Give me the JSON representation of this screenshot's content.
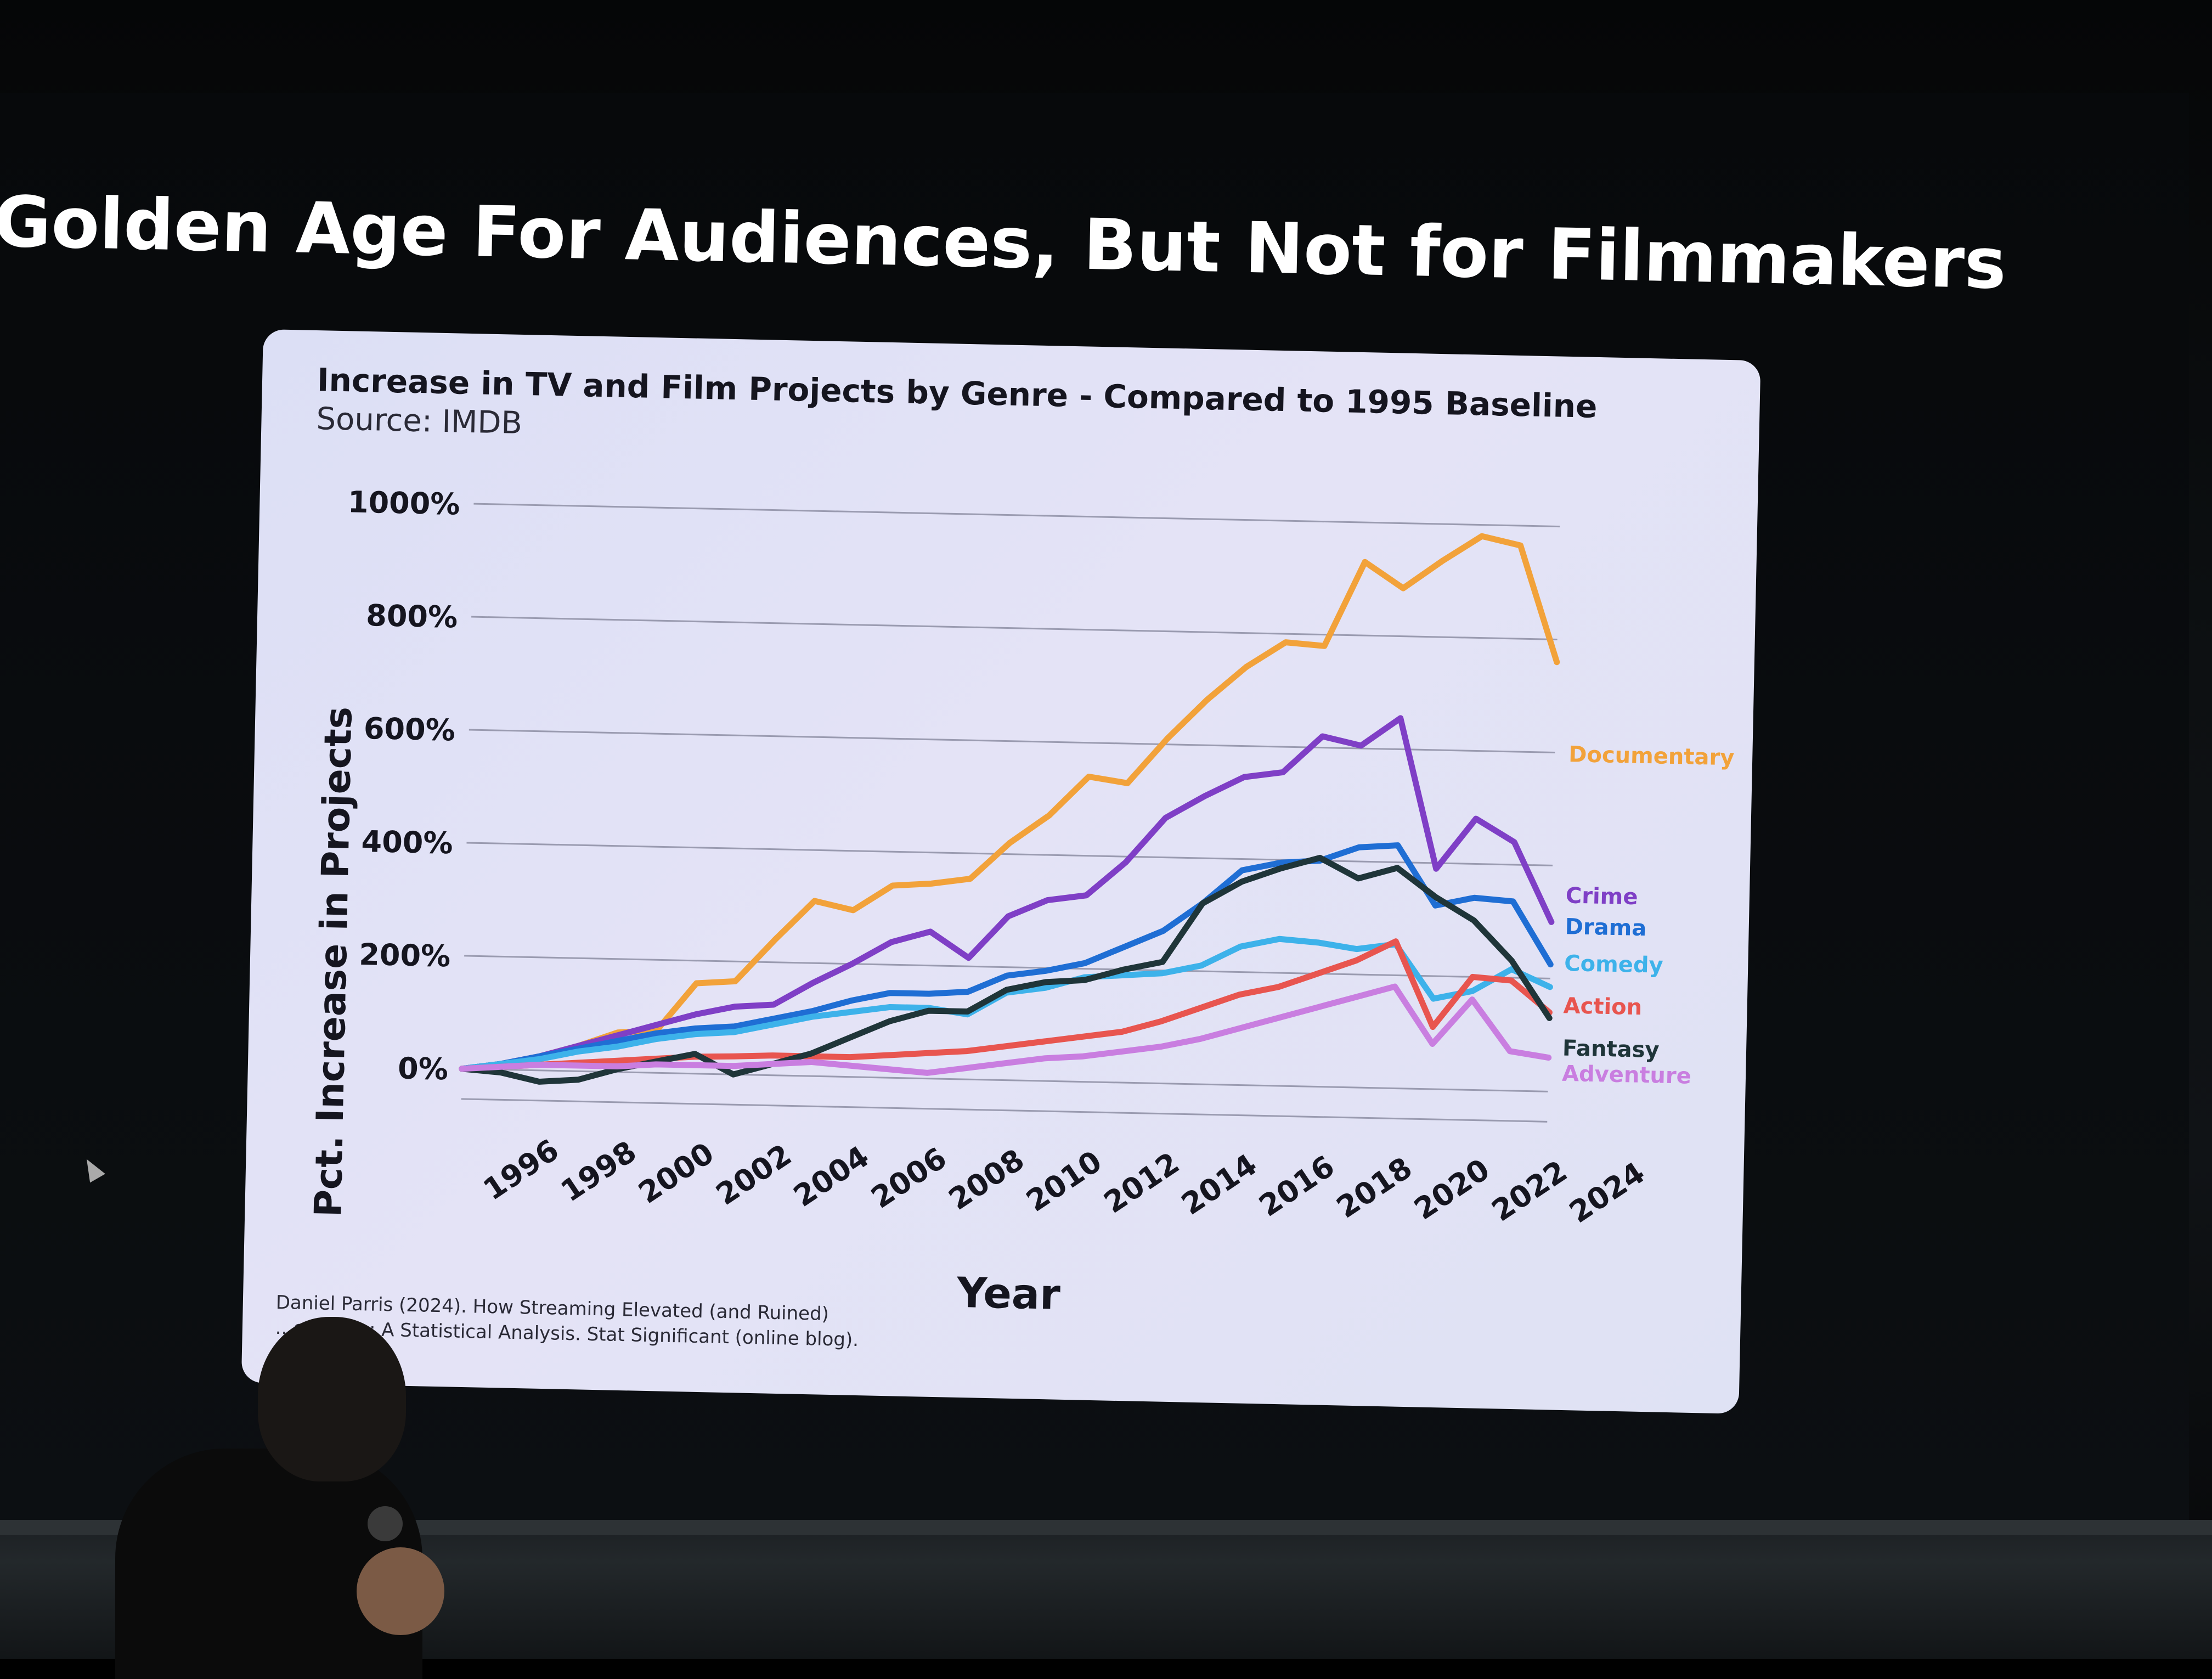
{
  "slide": {
    "title": "Golden Age For Audiences, But Not for Filmmakers"
  },
  "citation": {
    "line1": "Daniel Parris (2024). How Streaming Elevated (and Ruined)",
    "line2": "...entaries: A Statistical Analysis. Stat Significant (online blog)."
  },
  "chart_data": {
    "type": "line",
    "title": "Increase in TV and Film Projects by Genre - Compared to 1995 Baseline",
    "subtitle": "Source: IMDB",
    "xlabel": "Year",
    "ylabel": "Pct. Increase in Projects",
    "xlim": [
      1995,
      2023
    ],
    "ylim": [
      0,
      1000
    ],
    "x_ticks": [
      "1996",
      "1998",
      "2000",
      "2002",
      "2004",
      "2006",
      "2008",
      "2010",
      "2012",
      "2014",
      "2016",
      "2018",
      "2020",
      "2022",
      "2024"
    ],
    "y_ticks": [
      "0%",
      "200%",
      "400%",
      "600%",
      "800%",
      "1000%"
    ],
    "y_tick_values": [
      0,
      200,
      400,
      600,
      800,
      1000
    ],
    "grid": true,
    "legend": "right-inline",
    "x": [
      1995,
      1996,
      1997,
      1998,
      1999,
      2000,
      2001,
      2002,
      2003,
      2004,
      2005,
      2006,
      2007,
      2008,
      2009,
      2010,
      2011,
      2012,
      2013,
      2014,
      2015,
      2016,
      2017,
      2018,
      2019,
      2020,
      2021,
      2022,
      2023
    ],
    "series": [
      {
        "name": "Documentary",
        "color": "#f2a23a",
        "values": [
          0,
          10,
          25,
          45,
          70,
          75,
          160,
          165,
          240,
          310,
          295,
          340,
          345,
          355,
          420,
          470,
          540,
          530,
          610,
          680,
          740,
          785,
          780,
          930,
          885,
          935,
          980,
          965,
          760
        ]
      },
      {
        "name": "Crime",
        "color": "#7f3fc6",
        "values": [
          0,
          10,
          25,
          45,
          65,
          85,
          105,
          120,
          125,
          165,
          200,
          240,
          260,
          215,
          290,
          320,
          330,
          390,
          470,
          510,
          545,
          555,
          620,
          605,
          655,
          390,
          480,
          440,
          300
        ]
      },
      {
        "name": "Drama",
        "color": "#1f6ed4",
        "values": [
          0,
          10,
          25,
          40,
          55,
          70,
          80,
          85,
          100,
          115,
          135,
          150,
          150,
          155,
          185,
          195,
          210,
          240,
          270,
          320,
          380,
          395,
          400,
          425,
          430,
          325,
          340,
          335,
          225
        ]
      },
      {
        "name": "Comedy",
        "color": "#3db2ea",
        "values": [
          0,
          10,
          20,
          35,
          45,
          60,
          70,
          75,
          90,
          105,
          115,
          125,
          125,
          115,
          155,
          165,
          185,
          190,
          195,
          210,
          245,
          260,
          255,
          245,
          255,
          160,
          175,
          215,
          185
        ]
      },
      {
        "name": "Action",
        "color": "#e8554f",
        "values": [
          0,
          5,
          10,
          15,
          20,
          25,
          30,
          32,
          35,
          35,
          35,
          40,
          45,
          50,
          60,
          70,
          80,
          90,
          110,
          135,
          160,
          175,
          200,
          225,
          260,
          110,
          200,
          195,
          140
        ]
      },
      {
        "name": "Fantasy",
        "color": "#1f3539",
        "values": [
          0,
          -5,
          -20,
          -15,
          5,
          20,
          35,
          0,
          20,
          40,
          70,
          100,
          120,
          120,
          160,
          175,
          180,
          200,
          215,
          320,
          360,
          385,
          405,
          370,
          390,
          340,
          300,
          230,
          130
        ]
      },
      {
        "name": "Adventure",
        "color": "#c97ee0",
        "values": [
          0,
          5,
          10,
          10,
          10,
          15,
          15,
          15,
          20,
          25,
          20,
          15,
          10,
          20,
          30,
          40,
          45,
          55,
          65,
          80,
          100,
          120,
          140,
          160,
          180,
          80,
          160,
          70,
          60
        ]
      }
    ]
  }
}
